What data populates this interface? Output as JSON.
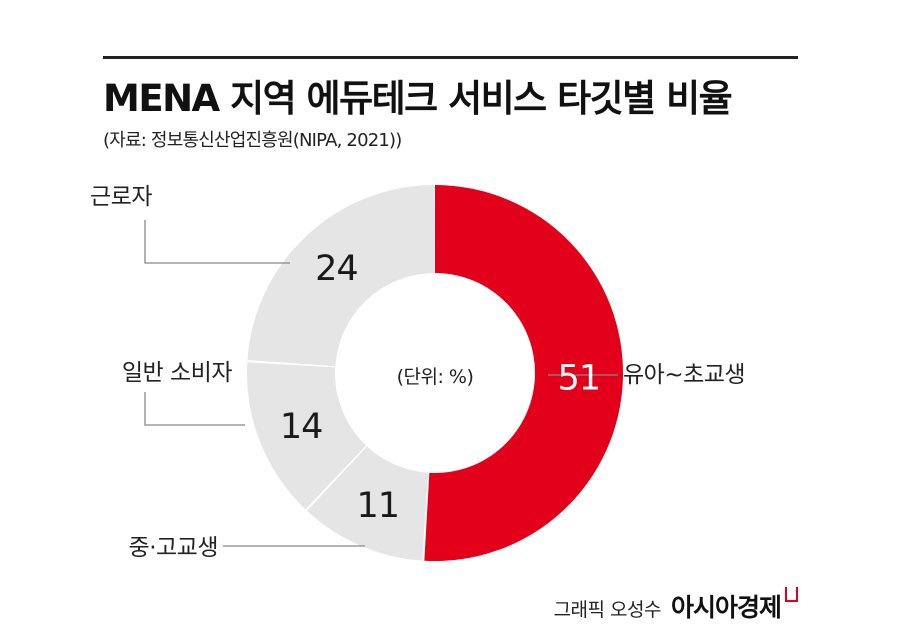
{
  "title": "MENA 지역 에듀테크 서비스 타깃별 비율",
  "source": "(자료: 정보통신산업진흥원(NIPA, 2021))",
  "credit": {
    "byline": "그래픽 오성수",
    "brand": "아시아경제"
  },
  "chart_data": {
    "type": "pie",
    "donut": true,
    "unit_label": "(단위: %)",
    "slices": [
      {
        "label": "유아~초교생",
        "value": 51,
        "color": "#e2001a"
      },
      {
        "label": "중·고교생",
        "value": 11,
        "color": "#e5e5e5"
      },
      {
        "label": "일반 소비자",
        "value": 14,
        "color": "#e5e5e5"
      },
      {
        "label": "근로자",
        "value": 24,
        "color": "#e5e5e5"
      }
    ],
    "start_angle_deg": 0,
    "direction": "clockwise"
  }
}
